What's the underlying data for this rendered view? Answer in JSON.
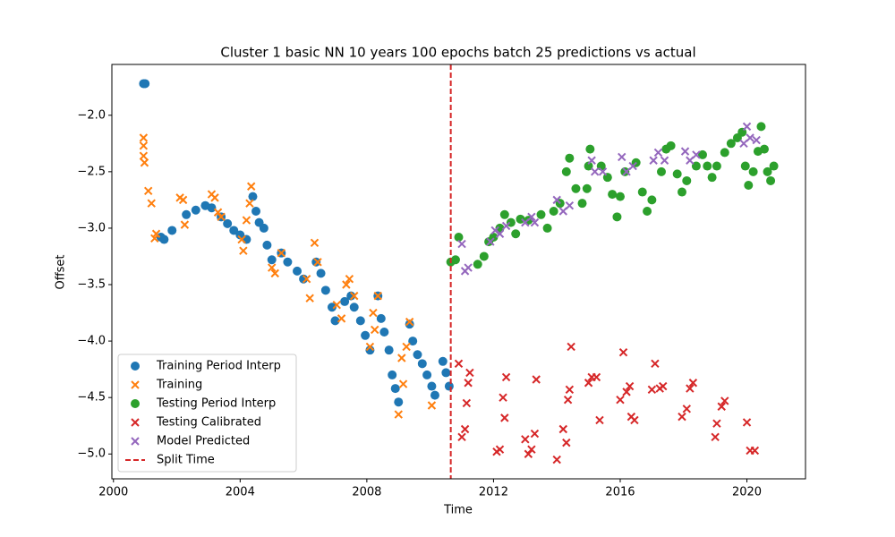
{
  "chart_data": {
    "type": "scatter",
    "title": "Cluster 1 basic NN 10 years 100 epochs batch 25 predictions vs actual",
    "x_label": "Time",
    "y_label": "Offset",
    "xlim": [
      1999.95,
      2021.85
    ],
    "ylim": [
      -5.22,
      -1.55
    ],
    "xticks": [
      2000,
      2004,
      2008,
      2012,
      2016,
      2020
    ],
    "yticks": [
      {
        "value": -2.0,
        "label": "−2.0"
      },
      {
        "value": -2.5,
        "label": "−2.5"
      },
      {
        "value": -3.0,
        "label": "−3.0"
      },
      {
        "value": -3.5,
        "label": "−3.5"
      },
      {
        "value": -4.0,
        "label": "−4.0"
      },
      {
        "value": -4.5,
        "label": "−4.5"
      },
      {
        "value": -5.0,
        "label": "−5.0"
      }
    ],
    "legend": "lower left",
    "series": [
      {
        "name": "Training Period Interp",
        "color": "#1f77b4",
        "marker": "o",
        "x": [
          2000.95,
          2001.0,
          2001.5,
          2001.6,
          2001.85,
          2002.3,
          2002.6,
          2002.9,
          2003.1,
          2003.4,
          2003.6,
          2003.8,
          2004.0,
          2004.2,
          2004.4,
          2004.5,
          2004.6,
          2004.75,
          2004.85,
          2005.0,
          2005.3,
          2005.5,
          2005.8,
          2006.0,
          2006.4,
          2006.55,
          2006.7,
          2006.9,
          2007.0,
          2007.3,
          2007.5,
          2007.6,
          2007.8,
          2007.95,
          2008.1,
          2008.35,
          2008.45,
          2008.55,
          2008.7,
          2008.8,
          2008.9,
          2009.0,
          2009.35,
          2009.45,
          2009.6,
          2009.75,
          2009.9,
          2010.05,
          2010.15,
          2010.4,
          2010.5,
          2010.6
        ],
        "values": [
          -1.72,
          -1.72,
          -3.08,
          -3.1,
          -3.02,
          -2.88,
          -2.84,
          -2.8,
          -2.82,
          -2.9,
          -2.96,
          -3.02,
          -3.06,
          -3.1,
          -2.72,
          -2.85,
          -2.95,
          -3.0,
          -3.15,
          -3.28,
          -3.22,
          -3.3,
          -3.38,
          -3.45,
          -3.3,
          -3.4,
          -3.55,
          -3.7,
          -3.82,
          -3.65,
          -3.6,
          -3.7,
          -3.82,
          -3.95,
          -4.08,
          -3.6,
          -3.8,
          -3.92,
          -4.08,
          -4.3,
          -4.42,
          -4.54,
          -3.85,
          -4.0,
          -4.12,
          -4.2,
          -4.3,
          -4.4,
          -4.48,
          -4.18,
          -4.28,
          -4.4
        ]
      },
      {
        "name": "Training",
        "color": "#ff7f0e",
        "marker": "x",
        "x": [
          2000.95,
          2000.95,
          2000.95,
          2000.98,
          2001.1,
          2001.2,
          2001.35,
          2001.3,
          2002.1,
          2002.2,
          2002.25,
          2003.1,
          2003.2,
          2003.3,
          2003.4,
          2004.05,
          2004.1,
          2004.2,
          2004.3,
          2004.35,
          2005.0,
          2005.1,
          2005.3,
          2006.1,
          2006.2,
          2006.35,
          2006.45,
          2007.05,
          2007.2,
          2007.35,
          2007.45,
          2007.6,
          2008.1,
          2008.2,
          2008.25,
          2008.35,
          2009.0,
          2009.1,
          2009.15,
          2009.25,
          2009.35,
          2010.05
        ],
        "values": [
          -2.2,
          -2.27,
          -2.36,
          -2.42,
          -2.67,
          -2.78,
          -3.05,
          -3.09,
          -2.73,
          -2.75,
          -2.97,
          -2.7,
          -2.73,
          -2.86,
          -2.9,
          -3.1,
          -3.2,
          -2.93,
          -2.78,
          -2.63,
          -3.35,
          -3.4,
          -3.22,
          -3.45,
          -3.62,
          -3.13,
          -3.3,
          -3.68,
          -3.8,
          -3.5,
          -3.45,
          -3.6,
          -4.05,
          -3.75,
          -3.9,
          -3.6,
          -4.65,
          -4.15,
          -4.38,
          -4.05,
          -3.83,
          -4.57
        ]
      },
      {
        "name": "Testing Period Interp",
        "color": "#2ca02c",
        "marker": "o",
        "x": [
          2010.65,
          2010.8,
          2010.9,
          2011.5,
          2011.7,
          2011.85,
          2012.0,
          2012.2,
          2012.35,
          2012.55,
          2012.7,
          2012.85,
          2013.1,
          2013.5,
          2013.7,
          2013.9,
          2014.1,
          2014.3,
          2014.4,
          2014.6,
          2014.8,
          2014.95,
          2015.0,
          2015.05,
          2015.4,
          2015.6,
          2015.75,
          2015.9,
          2016.0,
          2016.15,
          2016.5,
          2016.7,
          2016.85,
          2017.0,
          2017.3,
          2017.45,
          2017.6,
          2017.8,
          2017.95,
          2018.1,
          2018.4,
          2018.6,
          2018.75,
          2018.9,
          2019.05,
          2019.3,
          2019.5,
          2019.7,
          2019.85,
          2019.95,
          2020.05,
          2020.2,
          2020.35,
          2020.45,
          2020.55,
          2020.65,
          2020.75,
          2020.85
        ],
        "values": [
          -3.3,
          -3.28,
          -3.08,
          -3.32,
          -3.25,
          -3.12,
          -3.08,
          -3.0,
          -2.88,
          -2.95,
          -3.05,
          -2.92,
          -2.93,
          -2.88,
          -3.0,
          -2.85,
          -2.78,
          -2.5,
          -2.38,
          -2.65,
          -2.78,
          -2.65,
          -2.45,
          -2.3,
          -2.45,
          -2.55,
          -2.7,
          -2.9,
          -2.72,
          -2.5,
          -2.42,
          -2.68,
          -2.85,
          -2.75,
          -2.5,
          -2.3,
          -2.27,
          -2.52,
          -2.68,
          -2.58,
          -2.45,
          -2.35,
          -2.45,
          -2.55,
          -2.45,
          -2.33,
          -2.25,
          -2.2,
          -2.15,
          -2.45,
          -2.62,
          -2.5,
          -2.32,
          -2.1,
          -2.3,
          -2.5,
          -2.58,
          -2.45
        ]
      },
      {
        "name": "Testing Calibrated",
        "color": "#d62728",
        "marker": "x",
        "x": [
          2010.9,
          2011.0,
          2011.1,
          2011.15,
          2011.2,
          2011.25,
          2012.1,
          2012.2,
          2012.3,
          2012.35,
          2012.4,
          2013.0,
          2013.1,
          2013.2,
          2013.3,
          2013.35,
          2014.0,
          2014.2,
          2014.3,
          2014.35,
          2014.4,
          2014.45,
          2015.0,
          2015.1,
          2015.25,
          2015.35,
          2016.0,
          2016.1,
          2016.2,
          2016.3,
          2016.35,
          2016.45,
          2017.0,
          2017.1,
          2017.25,
          2017.35,
          2017.95,
          2018.1,
          2018.2,
          2018.3,
          2019.0,
          2019.05,
          2019.2,
          2019.3,
          2020.0,
          2020.1,
          2020.25
        ],
        "values": [
          -4.2,
          -4.85,
          -4.78,
          -4.55,
          -4.37,
          -4.28,
          -4.98,
          -4.96,
          -4.5,
          -4.68,
          -4.32,
          -4.87,
          -5.0,
          -4.96,
          -4.82,
          -4.34,
          -5.05,
          -4.78,
          -4.9,
          -4.52,
          -4.43,
          -4.05,
          -4.37,
          -4.32,
          -4.32,
          -4.7,
          -4.52,
          -4.1,
          -4.45,
          -4.4,
          -4.67,
          -4.7,
          -4.43,
          -4.2,
          -4.42,
          -4.4,
          -4.67,
          -4.6,
          -4.42,
          -4.37,
          -4.85,
          -4.73,
          -4.58,
          -4.53,
          -4.72,
          -4.97,
          -4.97
        ]
      },
      {
        "name": "Model Predicted",
        "color": "#9467bd",
        "marker": "x",
        "x": [
          2011.0,
          2011.1,
          2011.2,
          2011.9,
          2012.05,
          2012.2,
          2012.4,
          2013.0,
          2013.2,
          2013.3,
          2014.0,
          2014.2,
          2014.4,
          2015.1,
          2015.2,
          2015.45,
          2016.05,
          2016.2,
          2016.4,
          2017.05,
          2017.2,
          2017.4,
          2018.05,
          2018.2,
          2018.4,
          2019.9,
          2020.0,
          2020.1,
          2020.3
        ],
        "values": [
          -3.14,
          -3.38,
          -3.35,
          -3.12,
          -3.02,
          -3.05,
          -2.98,
          -2.95,
          -2.9,
          -2.95,
          -2.75,
          -2.85,
          -2.8,
          -2.4,
          -2.5,
          -2.5,
          -2.37,
          -2.5,
          -2.45,
          -2.4,
          -2.33,
          -2.4,
          -2.32,
          -2.4,
          -2.35,
          -2.25,
          -2.1,
          -2.2,
          -2.22
        ]
      }
    ],
    "split": {
      "name": "Split Time",
      "x": 2010.65,
      "color": "#d62728"
    }
  }
}
